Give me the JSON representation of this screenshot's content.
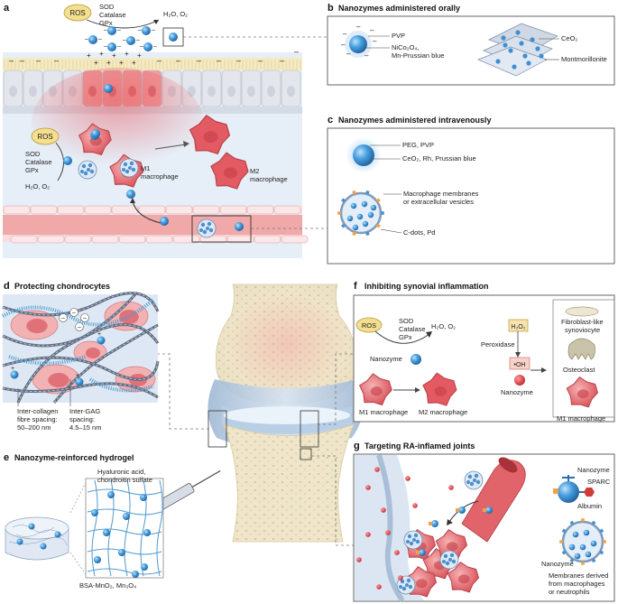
{
  "panel_a": {
    "letter": "a",
    "ros": "ROS",
    "enzymes": [
      "SOD",
      "Catalase",
      "GPx"
    ],
    "products": "H₂O, O₂",
    "ros2": "ROS",
    "enzymes2": [
      "SOD",
      "Catalase",
      "GPx"
    ],
    "products2": "H₂O, O₂",
    "m1": [
      "M1",
      "macrophage"
    ],
    "m2": [
      "M2",
      "macrophage"
    ]
  },
  "panel_b": {
    "letter": "b",
    "title": "Nanozymes administered orally",
    "label1": "PVP",
    "label2a": "NiCo₂O₄,",
    "label2b": "Mn-Prussian blue",
    "label3": "CeO₂",
    "label4": "Montmorillonite"
  },
  "panel_c": {
    "letter": "c",
    "title": "Nanozymes administered intravenously",
    "label1": "PEG, PVP",
    "label2": "CeO₂, Rh, Prussian blue",
    "label3a": "Macrophage membranes",
    "label3b": "or extracellular vesicles",
    "label4": "C-dots, Pd"
  },
  "panel_d": {
    "letter": "d",
    "title": "Protecting chondrocytes",
    "spacing1": [
      "Inter-collagen",
      "fibre spacing:",
      "50–200 nm"
    ],
    "spacing2": [
      "Inter-GAG",
      "spacing:",
      "4.5–15 nm"
    ]
  },
  "panel_e": {
    "letter": "e",
    "title": "Nanozyme-reinforced hydrogel",
    "label1a": "Hyaluronic acid,",
    "label1b": "chondroitin sulfate",
    "label2": "BSA-MnO₂, Mn₃O₄"
  },
  "panel_f": {
    "letter": "f",
    "title": "Inhibiting synovial inflammation",
    "ros": "ROS",
    "enzymes": [
      "SOD",
      "Catalase",
      "GPx"
    ],
    "products": "H₂O, O₂",
    "nanozyme": "Nanozyme",
    "m1": "M1 macrophage",
    "m2": "M2 macrophage",
    "h2o2": "H₂O₂",
    "peroxidase": "Peroxidase",
    "oh": "•OH",
    "nanozyme2": "Nanozyme",
    "fls": [
      "Fibroblast-like",
      "synoviocyte"
    ],
    "osteoclast": "Osteoclast",
    "m1b": "M1 macrophage"
  },
  "panel_g": {
    "letter": "g",
    "title": "Targeting RA-inflamed joints",
    "nanozyme": "Nanozyme",
    "sparc": "SPARC",
    "albumin": "Albumin",
    "nanozyme2": "Nanozyme",
    "membranes": [
      "Membranes derived",
      "from macrophages",
      "or neutrophils"
    ]
  },
  "colors": {
    "nanozyme_blue": "#3f8fd4",
    "macrophage_red": "#e0626a",
    "ros_yellow": "#f3df8e",
    "tissue_pink": "#f5c9c9",
    "panel_bg": "#e3edf7"
  }
}
